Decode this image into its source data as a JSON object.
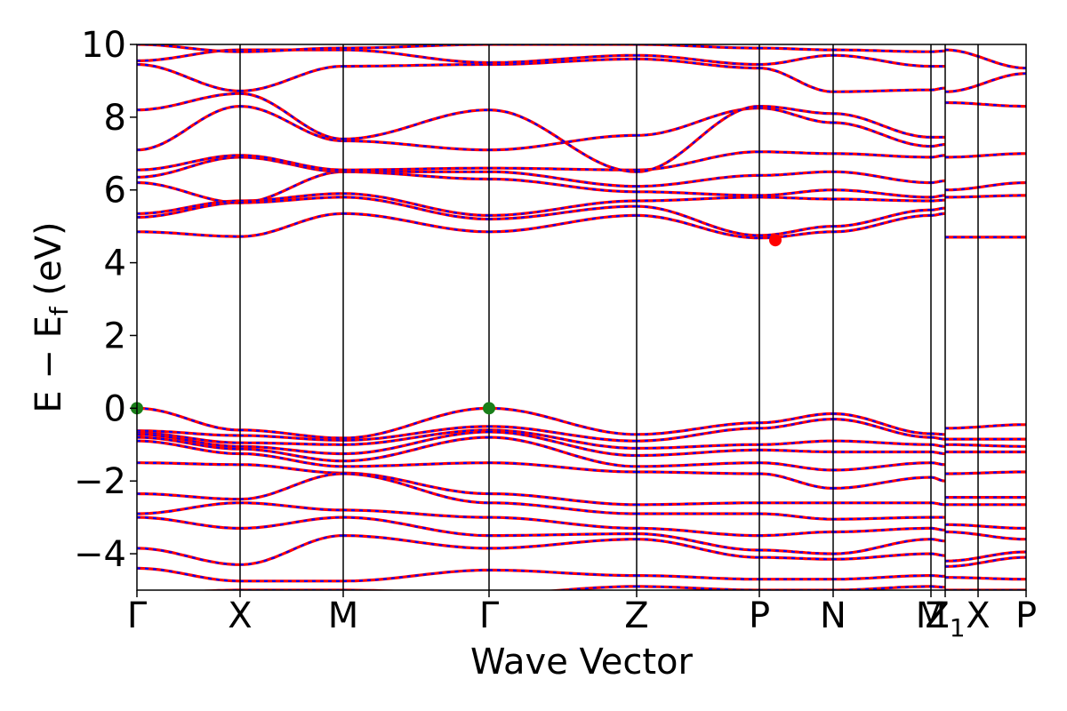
{
  "chart_data": {
    "type": "line",
    "title": "",
    "xlabel": "Wave Vector",
    "ylabel": "E − E",
    "ylabel_subscript": "f",
    "ylabel_unit": " (eV)",
    "xlim": [
      0,
      1
    ],
    "ylim": [
      -5,
      10
    ],
    "y_ticks": [
      {
        "value": -4,
        "label": "−4"
      },
      {
        "value": -2,
        "label": "−2"
      },
      {
        "value": 0,
        "label": "0"
      },
      {
        "value": 2,
        "label": "2"
      },
      {
        "value": 4,
        "label": "4"
      },
      {
        "value": 6,
        "label": "6"
      },
      {
        "value": 8,
        "label": "8"
      },
      {
        "value": 10,
        "label": "10"
      }
    ],
    "high_symmetry_points": [
      {
        "label": "Γ",
        "sub": "",
        "k": 0.0
      },
      {
        "label": "X",
        "sub": "",
        "k": 0.116
      },
      {
        "label": "M",
        "sub": "",
        "k": 0.232
      },
      {
        "label": "Γ",
        "sub": "",
        "k": 0.396
      },
      {
        "label": "Z",
        "sub": "",
        "k": 0.562
      },
      {
        "label": "P",
        "sub": "",
        "k": 0.7
      },
      {
        "label": "N",
        "sub": "",
        "k": 0.783
      },
      {
        "label": "M",
        "sub": "",
        "k": 0.893
      },
      {
        "label": "Z",
        "sub": "1",
        "k": 0.909
      },
      {
        "label": "X",
        "sub": "",
        "k": 0.946
      },
      {
        "label": "P",
        "sub": "",
        "k": 1.0
      }
    ],
    "segments": [
      {
        "from": "Γ",
        "to": "X",
        "k0": 0.0,
        "k1": 0.116,
        "valence": [
          [
            0.0,
            -0.6
          ],
          [
            -0.62,
            -0.75
          ],
          [
            -0.68,
            -0.95
          ],
          [
            -0.72,
            -1.05
          ],
          [
            -0.8,
            -1.12
          ],
          [
            -0.9,
            -1.25
          ],
          [
            -1.5,
            -1.55
          ],
          [
            -2.35,
            -2.5
          ],
          [
            -2.9,
            -2.6
          ],
          [
            -3.0,
            -3.3
          ],
          [
            -3.85,
            -4.3
          ],
          [
            -4.4,
            -4.75
          ],
          [
            -5.1,
            -5.0
          ]
        ],
        "conduction": [
          [
            4.85,
            4.72
          ],
          [
            5.25,
            5.65
          ],
          [
            5.35,
            5.7
          ],
          [
            6.2,
            5.65
          ],
          [
            6.35,
            6.9
          ],
          [
            6.55,
            6.95
          ],
          [
            7.1,
            8.3
          ],
          [
            8.2,
            8.65
          ],
          [
            9.45,
            8.72
          ],
          [
            9.55,
            9.85
          ],
          [
            10.0,
            9.8
          ]
        ]
      },
      {
        "from": "X",
        "to": "M",
        "k0": 0.116,
        "k1": 0.232,
        "valence": [
          [
            -0.6,
            -0.82
          ],
          [
            -0.75,
            -0.88
          ],
          [
            -0.95,
            -1.0
          ],
          [
            -1.05,
            -1.25
          ],
          [
            -1.12,
            -1.45
          ],
          [
            -1.25,
            -1.6
          ],
          [
            -1.55,
            -1.78
          ],
          [
            -2.5,
            -1.8
          ],
          [
            -2.6,
            -2.8
          ],
          [
            -3.3,
            -3.0
          ],
          [
            -4.3,
            -3.5
          ],
          [
            -4.75,
            -4.75
          ],
          [
            -5.0,
            -5.0
          ]
        ],
        "conduction": [
          [
            4.72,
            5.35
          ],
          [
            5.65,
            5.8
          ],
          [
            5.7,
            5.9
          ],
          [
            5.65,
            6.5
          ],
          [
            6.9,
            6.5
          ],
          [
            6.95,
            6.55
          ],
          [
            8.3,
            7.35
          ],
          [
            8.65,
            7.4
          ],
          [
            8.72,
            9.4
          ],
          [
            9.85,
            9.85
          ],
          [
            9.8,
            9.9
          ]
        ]
      },
      {
        "from": "M",
        "to": "Γ",
        "k0": 0.232,
        "k1": 0.396,
        "valence": [
          [
            -0.82,
            0.0
          ],
          [
            -0.88,
            -0.5
          ],
          [
            -1.0,
            -0.6
          ],
          [
            -1.25,
            -0.65
          ],
          [
            -1.45,
            -0.8
          ],
          [
            -1.6,
            -1.5
          ],
          [
            -1.78,
            -2.35
          ],
          [
            -1.8,
            -2.6
          ],
          [
            -2.8,
            -3.0
          ],
          [
            -3.0,
            -3.5
          ],
          [
            -3.5,
            -3.85
          ],
          [
            -4.75,
            -4.45
          ],
          [
            -5.0,
            -5.1
          ]
        ],
        "conduction": [
          [
            5.35,
            4.85
          ],
          [
            5.8,
            5.2
          ],
          [
            5.9,
            5.3
          ],
          [
            6.5,
            6.3
          ],
          [
            6.5,
            6.5
          ],
          [
            6.55,
            6.6
          ],
          [
            7.35,
            7.1
          ],
          [
            7.4,
            8.2
          ],
          [
            9.4,
            9.45
          ],
          [
            9.85,
            9.5
          ],
          [
            9.9,
            10.0
          ]
        ]
      },
      {
        "from": "Γ",
        "to": "Z",
        "k0": 0.396,
        "k1": 0.562,
        "valence": [
          [
            0.0,
            -0.72
          ],
          [
            -0.5,
            -0.9
          ],
          [
            -0.6,
            -1.1
          ],
          [
            -0.65,
            -1.3
          ],
          [
            -0.8,
            -1.6
          ],
          [
            -1.5,
            -1.75
          ],
          [
            -2.35,
            -2.65
          ],
          [
            -2.6,
            -2.9
          ],
          [
            -3.0,
            -3.3
          ],
          [
            -3.5,
            -3.45
          ],
          [
            -3.85,
            -3.6
          ],
          [
            -4.45,
            -4.6
          ],
          [
            -5.1,
            -4.9
          ]
        ],
        "conduction": [
          [
            4.85,
            5.3
          ],
          [
            5.2,
            5.55
          ],
          [
            5.3,
            5.7
          ],
          [
            6.3,
            5.95
          ],
          [
            6.5,
            6.1
          ],
          [
            6.6,
            6.55
          ],
          [
            7.1,
            7.5
          ],
          [
            8.2,
            6.5
          ],
          [
            9.45,
            9.6
          ],
          [
            9.5,
            9.7
          ],
          [
            10.0,
            10.0
          ]
        ]
      },
      {
        "from": "Z",
        "to": "P",
        "k0": 0.562,
        "k1": 0.7,
        "valence": [
          [
            -0.72,
            -0.4
          ],
          [
            -0.9,
            -0.55
          ],
          [
            -1.1,
            -1.0
          ],
          [
            -1.3,
            -1.15
          ],
          [
            -1.6,
            -1.5
          ],
          [
            -1.75,
            -1.8
          ],
          [
            -2.65,
            -2.6
          ],
          [
            -2.9,
            -2.9
          ],
          [
            -3.3,
            -3.5
          ],
          [
            -3.45,
            -3.9
          ],
          [
            -3.6,
            -4.1
          ],
          [
            -4.6,
            -4.7
          ],
          [
            -4.9,
            -5.0
          ]
        ],
        "conduction": [
          [
            5.3,
            4.68
          ],
          [
            5.55,
            4.75
          ],
          [
            5.7,
            5.8
          ],
          [
            5.95,
            5.85
          ],
          [
            6.1,
            6.4
          ],
          [
            6.55,
            7.05
          ],
          [
            7.5,
            8.25
          ],
          [
            6.5,
            8.3
          ],
          [
            9.6,
            9.35
          ],
          [
            9.7,
            9.45
          ],
          [
            10.0,
            9.9
          ]
        ]
      },
      {
        "from": "P",
        "to": "N",
        "k0": 0.7,
        "k1": 0.783,
        "valence": [
          [
            -0.4,
            -0.15
          ],
          [
            -0.55,
            -0.3
          ],
          [
            -1.0,
            -0.9
          ],
          [
            -1.15,
            -1.2
          ],
          [
            -1.5,
            -1.7
          ],
          [
            -1.8,
            -2.2
          ],
          [
            -2.6,
            -2.6
          ],
          [
            -2.9,
            -3.05
          ],
          [
            -3.5,
            -3.4
          ],
          [
            -3.9,
            -4.0
          ],
          [
            -4.1,
            -4.15
          ],
          [
            -4.7,
            -4.7
          ],
          [
            -5.0,
            -5.0
          ]
        ],
        "conduction": [
          [
            4.68,
            4.85
          ],
          [
            4.75,
            5.0
          ],
          [
            5.8,
            5.75
          ],
          [
            5.85,
            6.0
          ],
          [
            6.4,
            6.5
          ],
          [
            7.05,
            7.0
          ],
          [
            8.25,
            7.85
          ],
          [
            8.3,
            8.1
          ],
          [
            9.35,
            8.7
          ],
          [
            9.45,
            9.7
          ],
          [
            9.9,
            9.85
          ]
        ]
      },
      {
        "from": "N",
        "to": "M",
        "k0": 0.783,
        "k1": 0.893,
        "valence": [
          [
            -0.15,
            -0.7
          ],
          [
            -0.3,
            -0.8
          ],
          [
            -0.9,
            -1.0
          ],
          [
            -1.2,
            -1.2
          ],
          [
            -1.7,
            -1.5
          ],
          [
            -2.2,
            -1.9
          ],
          [
            -2.6,
            -2.6
          ],
          [
            -3.05,
            -3.0
          ],
          [
            -3.4,
            -3.3
          ],
          [
            -4.0,
            -3.6
          ],
          [
            -4.15,
            -4.0
          ],
          [
            -4.7,
            -4.6
          ],
          [
            -5.0,
            -4.9
          ]
        ],
        "conduction": [
          [
            4.85,
            5.3
          ],
          [
            5.0,
            5.45
          ],
          [
            5.75,
            5.7
          ],
          [
            6.0,
            5.8
          ],
          [
            6.5,
            6.2
          ],
          [
            7.0,
            6.9
          ],
          [
            7.85,
            7.2
          ],
          [
            8.1,
            7.45
          ],
          [
            8.7,
            8.75
          ],
          [
            9.7,
            9.4
          ],
          [
            9.85,
            9.8
          ]
        ]
      },
      {
        "from": "M",
        "to": "Z₁",
        "k0": 0.893,
        "k1": 0.909,
        "valence": [
          [
            -0.7,
            -0.72
          ],
          [
            -0.8,
            -0.85
          ],
          [
            -1.0,
            -1.05
          ],
          [
            -1.2,
            -1.25
          ],
          [
            -1.5,
            -1.55
          ],
          [
            -1.9,
            -2.0
          ],
          [
            -2.6,
            -2.65
          ],
          [
            -3.0,
            -3.0
          ],
          [
            -3.3,
            -3.35
          ],
          [
            -3.6,
            -3.65
          ],
          [
            -4.0,
            -4.05
          ],
          [
            -4.6,
            -4.62
          ],
          [
            -4.9,
            -4.92
          ]
        ],
        "conduction": [
          [
            5.3,
            5.35
          ],
          [
            5.45,
            5.5
          ],
          [
            5.7,
            5.72
          ],
          [
            5.8,
            5.85
          ],
          [
            6.2,
            6.25
          ],
          [
            6.9,
            6.95
          ],
          [
            7.2,
            7.25
          ],
          [
            7.45,
            7.45
          ],
          [
            8.75,
            8.8
          ],
          [
            9.4,
            9.4
          ],
          [
            9.8,
            9.82
          ]
        ]
      },
      {
        "from": "X",
        "to": "P",
        "k0": 0.909,
        "k1": 1.0,
        "valence": [
          [
            -0.55,
            -0.45
          ],
          [
            -0.85,
            -0.85
          ],
          [
            -1.0,
            -1.05
          ],
          [
            -1.2,
            -1.2
          ],
          [
            -1.8,
            -1.75
          ],
          [
            -2.45,
            -2.45
          ],
          [
            -2.65,
            -2.65
          ],
          [
            -3.2,
            -3.3
          ],
          [
            -3.4,
            -3.6
          ],
          [
            -4.2,
            -3.95
          ],
          [
            -4.35,
            -4.1
          ],
          [
            -4.65,
            -4.7
          ],
          [
            -5.0,
            -5.0
          ]
        ],
        "conduction": [
          [
            4.7,
            4.7
          ],
          [
            5.8,
            5.85
          ],
          [
            6.0,
            6.2
          ],
          [
            6.9,
            7.0
          ],
          [
            8.4,
            8.3
          ],
          [
            8.7,
            9.2
          ],
          [
            9.85,
            9.35
          ]
        ]
      }
    ],
    "markers": [
      {
        "name": "vbm-marker-gamma-start",
        "k": 0.0,
        "e": 0.0,
        "color": "#1a7f1a"
      },
      {
        "name": "vbm-marker-gamma-mid",
        "k": 0.396,
        "e": 0.0,
        "color": "#1a7f1a"
      },
      {
        "name": "cbm-marker",
        "k": 0.718,
        "e": 4.62,
        "color": "#ff0000"
      }
    ],
    "colors": {
      "band": "#ff0000",
      "band_dash": "#0000ff",
      "vertical": "#000000",
      "frame": "#000000"
    },
    "grid": false,
    "legend": "none"
  }
}
